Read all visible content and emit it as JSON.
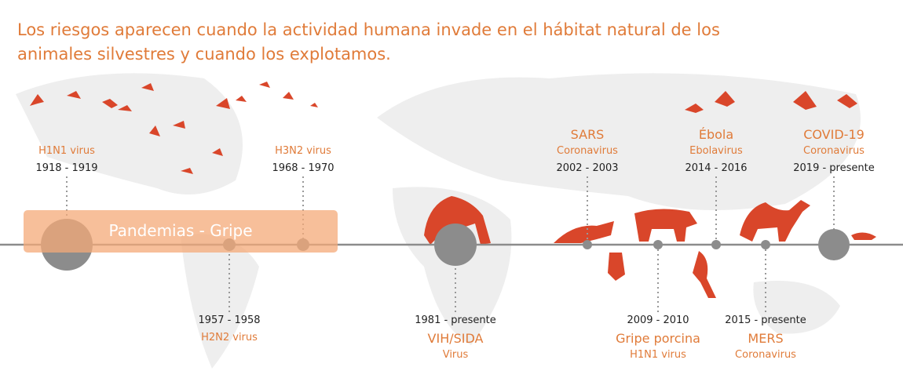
{
  "title_lines": [
    "Los riesgos aparecen cuando la actividad humana invade en el hábitat natural de los",
    "animales silvestres y cuando los explotamos."
  ],
  "band_label": "Pandemias - Gripe",
  "events": [
    {
      "lines": [
        "H1N1 virus",
        "1918 - 1919"
      ]
    },
    {
      "lines": [
        "1957 - 1958",
        "H2N2 virus"
      ]
    },
    {
      "lines": [
        "H3N2 virus",
        "1968 - 1970"
      ]
    },
    {
      "lines": [
        "1981 - presente",
        "VIH/SIDA",
        "Virus"
      ]
    },
    {
      "lines": [
        "SARS",
        "Coronavirus",
        "2002 - 2003"
      ]
    },
    {
      "lines": [
        "2009 - 2010",
        "Gripe porcina",
        "H1N1 virus"
      ]
    },
    {
      "lines": [
        "Ébola",
        "Ebolavirus",
        "2014 - 2016"
      ]
    },
    {
      "lines": [
        "2015 - presente",
        "MERS",
        "Coronavirus"
      ]
    },
    {
      "lines": [
        "COVID-19",
        "Coronavirus",
        "2019 - presente"
      ]
    }
  ]
}
